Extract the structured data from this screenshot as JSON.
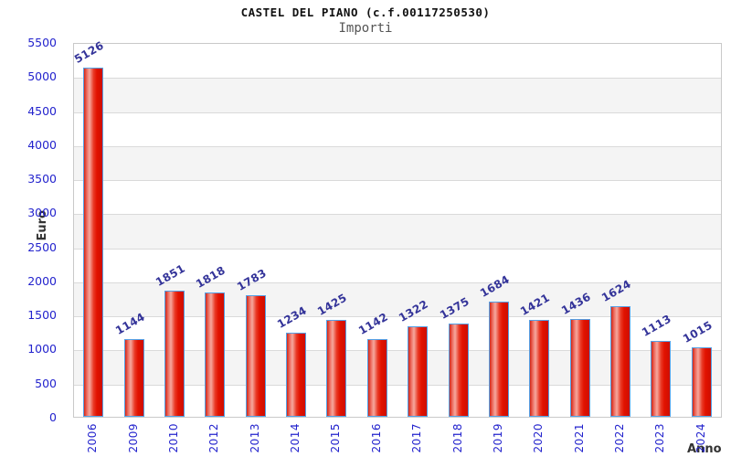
{
  "header": {
    "title": "CASTEL DEL PIANO (c.f.00117250530)",
    "subtitle": "Importi"
  },
  "chart_data": {
    "type": "bar",
    "title": "CASTEL DEL PIANO (c.f.00117250530)",
    "subtitle": "Importi",
    "xlabel": "Anno",
    "ylabel": "Euro",
    "categories": [
      "2006",
      "2009",
      "2010",
      "2012",
      "2013",
      "2014",
      "2015",
      "2016",
      "2017",
      "2018",
      "2019",
      "2020",
      "2021",
      "2022",
      "2023",
      "2024"
    ],
    "values": [
      5126,
      1144,
      1851,
      1818,
      1783,
      1234,
      1425,
      1142,
      1322,
      1375,
      1684,
      1421,
      1436,
      1624,
      1113,
      1015
    ],
    "ylim": [
      0,
      5500
    ],
    "ytick_step": 500,
    "grid": true,
    "legend": "none",
    "colors": {
      "bar_fill_main": "#e21200",
      "bar_fill_highlight": "#f5a89e",
      "bar_border": "#55a0e5",
      "tick_label": "#2323cd",
      "value_label": "#333399",
      "band_gray": "#f4f4f4",
      "gridline": "#dadada",
      "plot_border": "#c9c9c9",
      "subtitle_gray": "#555555"
    }
  }
}
